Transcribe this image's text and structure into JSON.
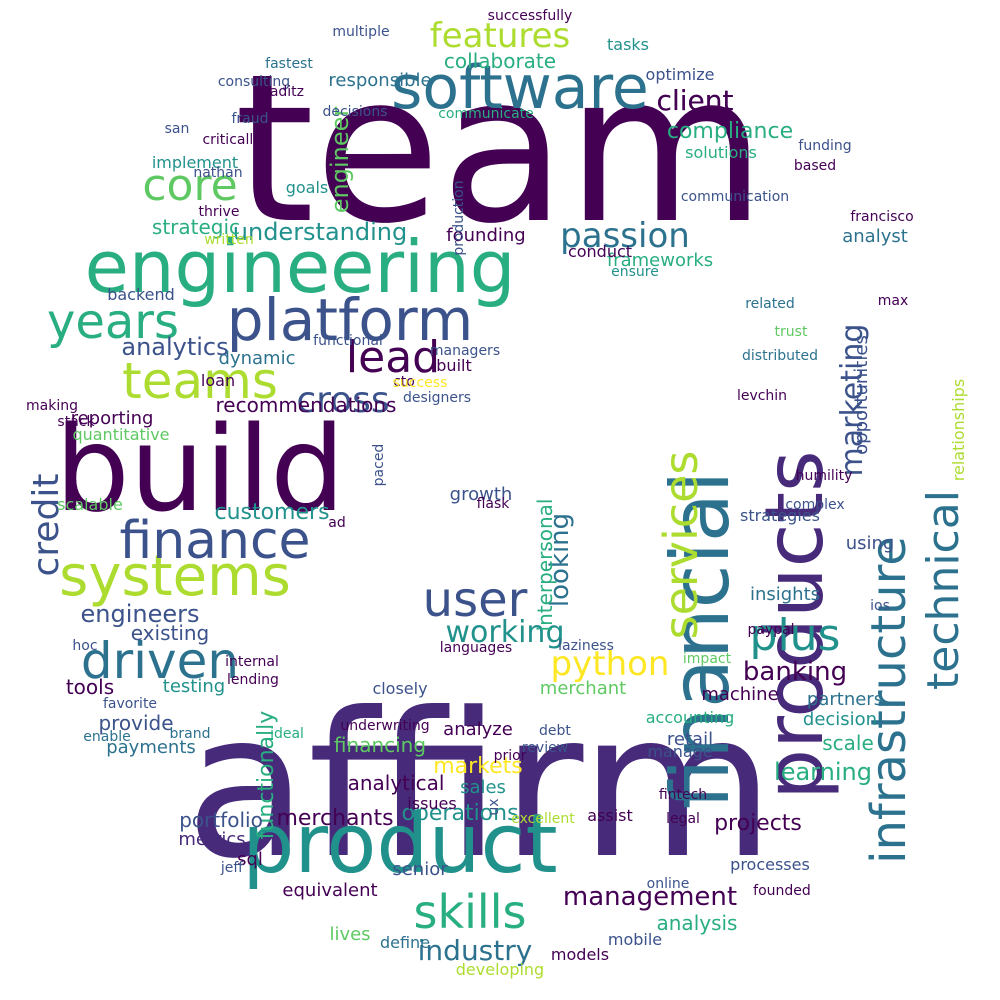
{
  "palette": {
    "deep_purple": "#440154",
    "indigo": "#472a7a",
    "blue": "#3b528b",
    "steel": "#2c728e",
    "teal": "#21918c",
    "green": "#28ae80",
    "lime": "#5ec962",
    "yellow_green": "#addc30",
    "yellow": "#fde725"
  },
  "words": [
    {
      "text": "team",
      "color": "deep_purple"
    },
    {
      "text": "affirm",
      "color": "indigo"
    },
    {
      "text": "build",
      "color": "deep_purple"
    },
    {
      "text": "engineering",
      "color": "green"
    },
    {
      "text": "product",
      "color": "teal"
    },
    {
      "text": "financial",
      "color": "steel"
    },
    {
      "text": "products",
      "color": "indigo"
    },
    {
      "text": "software",
      "color": "steel"
    },
    {
      "text": "platform",
      "color": "blue"
    },
    {
      "text": "systems",
      "color": "yellow_green"
    },
    {
      "text": "finance",
      "color": "blue"
    },
    {
      "text": "teams",
      "color": "yellow_green"
    },
    {
      "text": "infrastructure",
      "color": "steel"
    },
    {
      "text": "technical",
      "color": "steel"
    },
    {
      "text": "services",
      "color": "yellow_green"
    },
    {
      "text": "years",
      "color": "green"
    },
    {
      "text": "lead",
      "color": "deep_purple"
    },
    {
      "text": "driven",
      "color": "steel"
    },
    {
      "text": "user",
      "color": "blue"
    },
    {
      "text": "skills",
      "color": "green"
    },
    {
      "text": "plus",
      "color": "teal"
    },
    {
      "text": "core",
      "color": "lime"
    },
    {
      "text": "features",
      "color": "yellow_green"
    },
    {
      "text": "passion",
      "color": "steel"
    },
    {
      "text": "cross",
      "color": "blue"
    },
    {
      "text": "credit",
      "color": "blue"
    },
    {
      "text": "python",
      "color": "yellow"
    },
    {
      "text": "working",
      "color": "teal"
    },
    {
      "text": "industry",
      "color": "steel"
    },
    {
      "text": "management",
      "color": "deep_purple"
    },
    {
      "text": "marketing",
      "color": "blue"
    },
    {
      "text": "client",
      "color": "deep_purple"
    },
    {
      "text": "banking",
      "color": "deep_purple"
    },
    {
      "text": "learning",
      "color": "green"
    },
    {
      "text": "engineer",
      "color": "lime"
    },
    {
      "text": "analytics",
      "color": "blue"
    },
    {
      "text": "engineers",
      "color": "blue"
    },
    {
      "text": "compliance",
      "color": "green"
    },
    {
      "text": "collaborate",
      "color": "green"
    },
    {
      "text": "understanding",
      "color": "teal"
    },
    {
      "text": "customers",
      "color": "teal"
    },
    {
      "text": "recommendations",
      "color": "deep_purple"
    },
    {
      "text": "existing",
      "color": "blue"
    },
    {
      "text": "tools",
      "color": "deep_purple"
    },
    {
      "text": "responsible",
      "color": "steel"
    },
    {
      "text": "communicate",
      "color": "green"
    },
    {
      "text": "strategic",
      "color": "green"
    },
    {
      "text": "opportunities",
      "color": "blue"
    },
    {
      "text": "relationships",
      "color": "yellow_green"
    },
    {
      "text": "looking",
      "color": "steel"
    },
    {
      "text": "interpersonal",
      "color": "green"
    },
    {
      "text": "markets",
      "color": "yellow"
    },
    {
      "text": "sales",
      "color": "teal"
    },
    {
      "text": "growth",
      "color": "blue"
    },
    {
      "text": "founding",
      "color": "deep_purple"
    },
    {
      "text": "frameworks",
      "color": "green"
    },
    {
      "text": "analyst",
      "color": "steel"
    },
    {
      "text": "dynamic",
      "color": "steel"
    },
    {
      "text": "quantitative",
      "color": "lime"
    },
    {
      "text": "reporting",
      "color": "deep_purple"
    },
    {
      "text": "scalable",
      "color": "lime"
    },
    {
      "text": "testing",
      "color": "teal"
    },
    {
      "text": "provide",
      "color": "blue"
    },
    {
      "text": "payments",
      "color": "steel"
    },
    {
      "text": "functionally",
      "color": "green"
    },
    {
      "text": "financing",
      "color": "lime"
    },
    {
      "text": "analytical",
      "color": "deep_purple"
    },
    {
      "text": "operations",
      "color": "teal"
    },
    {
      "text": "merchants",
      "color": "deep_purple"
    },
    {
      "text": "portfolio",
      "color": "blue"
    },
    {
      "text": "metrics",
      "color": "indigo"
    },
    {
      "text": "sql",
      "color": "deep_purple"
    },
    {
      "text": "senior",
      "color": "blue"
    },
    {
      "text": "equivalent",
      "color": "deep_purple"
    },
    {
      "text": "lives",
      "color": "lime"
    },
    {
      "text": "define",
      "color": "steel"
    },
    {
      "text": "developing",
      "color": "yellow_green"
    },
    {
      "text": "models",
      "color": "deep_purple"
    },
    {
      "text": "mobile",
      "color": "blue"
    },
    {
      "text": "analysis",
      "color": "green"
    },
    {
      "text": "projects",
      "color": "deep_purple"
    },
    {
      "text": "scale",
      "color": "green"
    },
    {
      "text": "decision",
      "color": "teal"
    },
    {
      "text": "partners",
      "color": "steel"
    },
    {
      "text": "machine",
      "color": "deep_purple"
    },
    {
      "text": "accounting",
      "color": "green"
    },
    {
      "text": "merchant",
      "color": "lime"
    },
    {
      "text": "closely",
      "color": "blue"
    },
    {
      "text": "insights",
      "color": "steel"
    },
    {
      "text": "using",
      "color": "blue"
    },
    {
      "text": "strategies",
      "color": "blue"
    },
    {
      "text": "processes",
      "color": "blue"
    },
    {
      "text": "assist",
      "color": "deep_purple"
    },
    {
      "text": "retail",
      "color": "blue"
    },
    {
      "text": "issues",
      "color": "deep_purple"
    },
    {
      "text": "analyze",
      "color": "deep_purple"
    },
    {
      "text": "manage",
      "color": "blue"
    },
    {
      "text": "optimize",
      "color": "blue"
    },
    {
      "text": "decisions",
      "color": "blue"
    },
    {
      "text": "implement",
      "color": "teal"
    },
    {
      "text": "goals",
      "color": "teal"
    },
    {
      "text": "backend",
      "color": "blue"
    },
    {
      "text": "tasks",
      "color": "teal"
    },
    {
      "text": "consulting",
      "color": "blue"
    },
    {
      "text": "fraud",
      "color": "blue"
    },
    {
      "text": "fastest",
      "color": "steel"
    },
    {
      "text": "critically",
      "color": "deep_purple"
    },
    {
      "text": "thrive",
      "color": "deep_purple"
    },
    {
      "text": "written",
      "color": "yellow_green"
    },
    {
      "text": "loan",
      "color": "deep_purple"
    },
    {
      "text": "making",
      "color": "deep_purple"
    },
    {
      "text": "stack",
      "color": "deep_purple"
    },
    {
      "text": "internal",
      "color": "deep_purple"
    },
    {
      "text": "lending",
      "color": "deep_purple"
    },
    {
      "text": "favorite",
      "color": "blue"
    },
    {
      "text": "brand",
      "color": "steel"
    },
    {
      "text": "enable",
      "color": "steel"
    },
    {
      "text": "ideal",
      "color": "green"
    },
    {
      "text": "underwriting",
      "color": "deep_purple"
    },
    {
      "text": "cto",
      "color": "deep_purple"
    },
    {
      "text": "built",
      "color": "deep_purple"
    },
    {
      "text": "paced",
      "color": "blue"
    },
    {
      "text": "success",
      "color": "yellow"
    },
    {
      "text": "designers",
      "color": "blue"
    },
    {
      "text": "managers",
      "color": "blue"
    },
    {
      "text": "functional",
      "color": "blue"
    },
    {
      "text": "production",
      "color": "blue"
    },
    {
      "text": "client",
      "color": "deep_purple"
    },
    {
      "text": "solutions",
      "color": "green"
    },
    {
      "text": "communication",
      "color": "blue"
    },
    {
      "text": "conduct",
      "color": "deep_purple"
    },
    {
      "text": "ensure",
      "color": "teal"
    },
    {
      "text": "francisco",
      "color": "deep_purple"
    },
    {
      "text": "max",
      "color": "deep_purple"
    },
    {
      "text": "related",
      "color": "steel"
    },
    {
      "text": "trust",
      "color": "lime"
    },
    {
      "text": "distributed",
      "color": "steel"
    },
    {
      "text": "levchin",
      "color": "deep_purple"
    },
    {
      "text": "humility",
      "color": "deep_purple"
    },
    {
      "text": "complex",
      "color": "blue"
    },
    {
      "text": "paypal",
      "color": "deep_purple"
    },
    {
      "text": "impact",
      "color": "lime"
    },
    {
      "text": "fintech",
      "color": "deep_purple"
    },
    {
      "text": "legal",
      "color": "deep_purple"
    },
    {
      "text": "online",
      "color": "blue"
    },
    {
      "text": "founded",
      "color": "deep_purple"
    },
    {
      "text": "excellent",
      "color": "yellow_green"
    },
    {
      "text": "ux",
      "color": "blue"
    },
    {
      "text": "jeff",
      "color": "blue"
    },
    {
      "text": "review",
      "color": "blue"
    },
    {
      "text": "prior",
      "color": "deep_purple"
    },
    {
      "text": "debt",
      "color": "blue"
    },
    {
      "text": "ios",
      "color": "blue"
    },
    {
      "text": "ad",
      "color": "deep_purple"
    },
    {
      "text": "hoc",
      "color": "blue"
    },
    {
      "text": "san",
      "color": "blue"
    },
    {
      "text": "nathan",
      "color": "blue"
    },
    {
      "text": "kaditz",
      "color": "deep_purple"
    },
    {
      "text": "multiple",
      "color": "blue"
    },
    {
      "text": "successfully",
      "color": "deep_purple"
    },
    {
      "text": "funding",
      "color": "blue"
    },
    {
      "text": "based",
      "color": "deep_purple"
    },
    {
      "text": "languages",
      "color": "deep_purple"
    },
    {
      "text": "laziness",
      "color": "blue"
    },
    {
      "text": "flask",
      "color": "deep_purple"
    }
  ]
}
